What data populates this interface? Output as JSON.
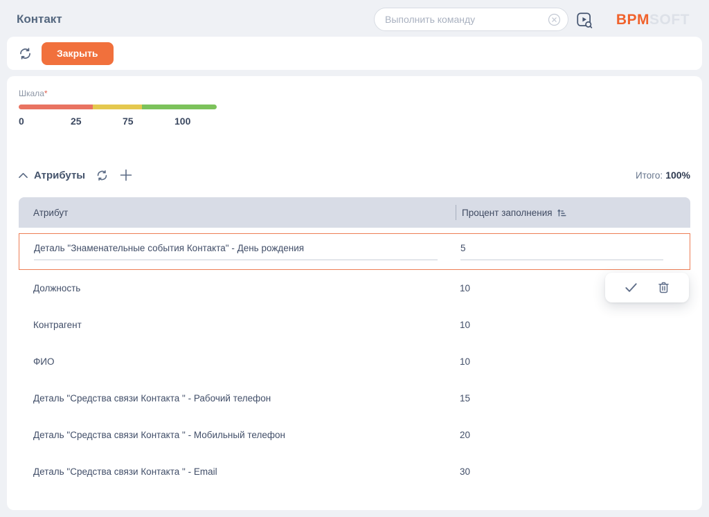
{
  "header": {
    "title": "Контакт",
    "command_placeholder": "Выполнить команду",
    "logo_primary": "BPM",
    "logo_secondary": "SOFT"
  },
  "toolbar": {
    "close_label": "Закрыть"
  },
  "scale": {
    "label": "Шкала",
    "required_mark": "*",
    "ticks": [
      "0",
      "25",
      "75",
      "100"
    ],
    "segments": [
      {
        "color": "#e97361",
        "width_pct": 37.5
      },
      {
        "color": "#e4c84e",
        "width_pct": 24.8
      },
      {
        "color": "#7cc25b",
        "width_pct": 37.7
      }
    ]
  },
  "attributes": {
    "section_title": "Атрибуты",
    "total_label": "Итого:",
    "total_value": "100%",
    "columns": [
      "Атрибут",
      "Процент заполнения"
    ],
    "rows": [
      {
        "attribute": "Деталь \"Знаменательные события Контакта\" - День рождения",
        "percent": "5",
        "editing": true
      },
      {
        "attribute": "Должность",
        "percent": "10"
      },
      {
        "attribute": "Контрагент",
        "percent": "10"
      },
      {
        "attribute": "ФИО",
        "percent": "10"
      },
      {
        "attribute": "Деталь \"Средства связи Контакта \" - Рабочий телефон",
        "percent": "15"
      },
      {
        "attribute": "Деталь \"Средства связи Контакта \" - Мобильный телефон",
        "percent": "20"
      },
      {
        "attribute": "Деталь \"Средства связи Контакта \" - Email",
        "percent": "30"
      }
    ]
  },
  "colors": {
    "accent_orange": "#f1703c",
    "logo_orange": "#f0622c",
    "edit_row_border": "#ed7d54",
    "table_header_bg": "#d8dce6",
    "scale_red": "#e97361",
    "scale_yellow": "#e4c84e",
    "scale_green": "#7cc25b"
  }
}
